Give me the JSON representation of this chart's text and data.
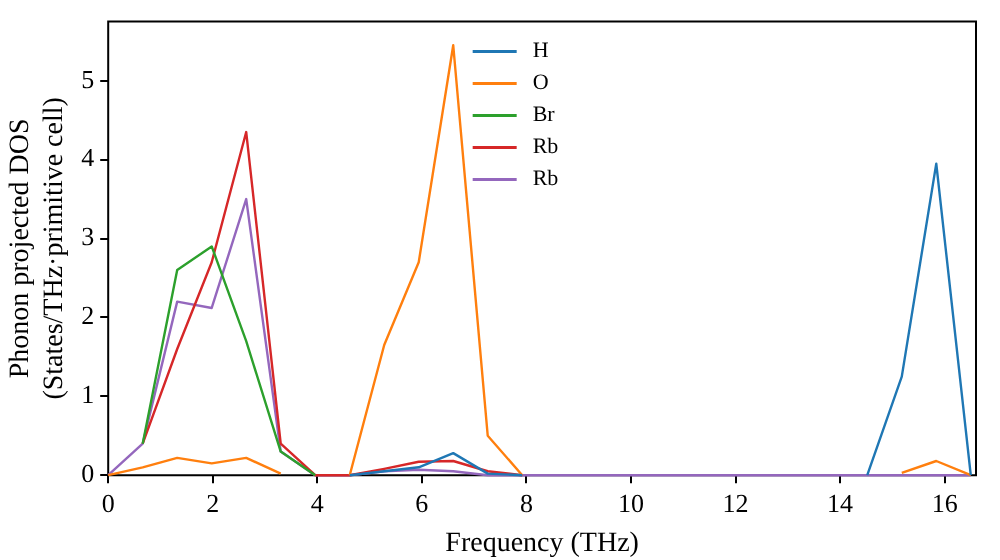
{
  "chart_data": {
    "type": "line",
    "xlabel": "Frequency (THz)",
    "ylabel": "Phonon projected DOS\n(States/THz·primitive cell)",
    "x": [
      0,
      0.66,
      1.32,
      1.98,
      2.64,
      3.3,
      3.96,
      4.62,
      5.28,
      5.94,
      6.6,
      7.26,
      7.92,
      8.58,
      9.24,
      9.9,
      10.56,
      11.22,
      11.88,
      12.54,
      13.2,
      13.86,
      14.52,
      15.18,
      15.84,
      16.5
    ],
    "series": [
      {
        "name": "H",
        "color": "#1f77b4",
        "values": [
          null,
          null,
          null,
          null,
          null,
          null,
          null,
          0,
          0.05,
          0.1,
          0.28,
          0.02,
          0,
          null,
          null,
          null,
          null,
          null,
          null,
          null,
          null,
          null,
          0,
          1.25,
          3.95,
          0
        ]
      },
      {
        "name": "O",
        "color": "#ff7f0e",
        "values": [
          0,
          0.1,
          0.22,
          0.15,
          0.22,
          0.02,
          null,
          0,
          1.65,
          2.7,
          5.45,
          0.5,
          0,
          null,
          null,
          null,
          null,
          null,
          null,
          null,
          null,
          null,
          null,
          0.03,
          0.18,
          0
        ]
      },
      {
        "name": "Br",
        "color": "#2ca02c",
        "values": [
          null,
          0.4,
          2.6,
          2.9,
          1.7,
          0.3,
          0,
          null,
          null,
          null,
          null,
          null,
          null,
          null,
          null,
          null,
          null,
          null,
          null,
          null,
          null,
          null,
          null,
          null,
          null,
          null
        ]
      },
      {
        "name": "Rb",
        "color": "#d62728",
        "values": [
          null,
          0.4,
          1.6,
          2.7,
          4.35,
          0.4,
          0,
          0,
          0.08,
          0.17,
          0.18,
          0.05,
          0,
          null,
          null,
          null,
          null,
          null,
          null,
          null,
          null,
          null,
          null,
          null,
          null,
          null
        ]
      },
      {
        "name": "Rb",
        "color": "#9467bd",
        "values": [
          0,
          0.4,
          2.2,
          2.12,
          3.5,
          0.3,
          0,
          0,
          0.05,
          0.07,
          0.05,
          0,
          0,
          0,
          0,
          0,
          0,
          0,
          0,
          0,
          0,
          0,
          0,
          0,
          0,
          0
        ]
      }
    ],
    "xlim": [
      0,
      16.6
    ],
    "xticks": [
      0,
      2,
      4,
      6,
      8,
      10,
      12,
      14,
      16
    ],
    "ylim": [
      0,
      5.75
    ],
    "yticks": [
      0,
      1,
      2,
      3,
      4,
      5
    ],
    "grid": false,
    "legend": "top",
    "marker": "none",
    "line_style": "solid"
  }
}
